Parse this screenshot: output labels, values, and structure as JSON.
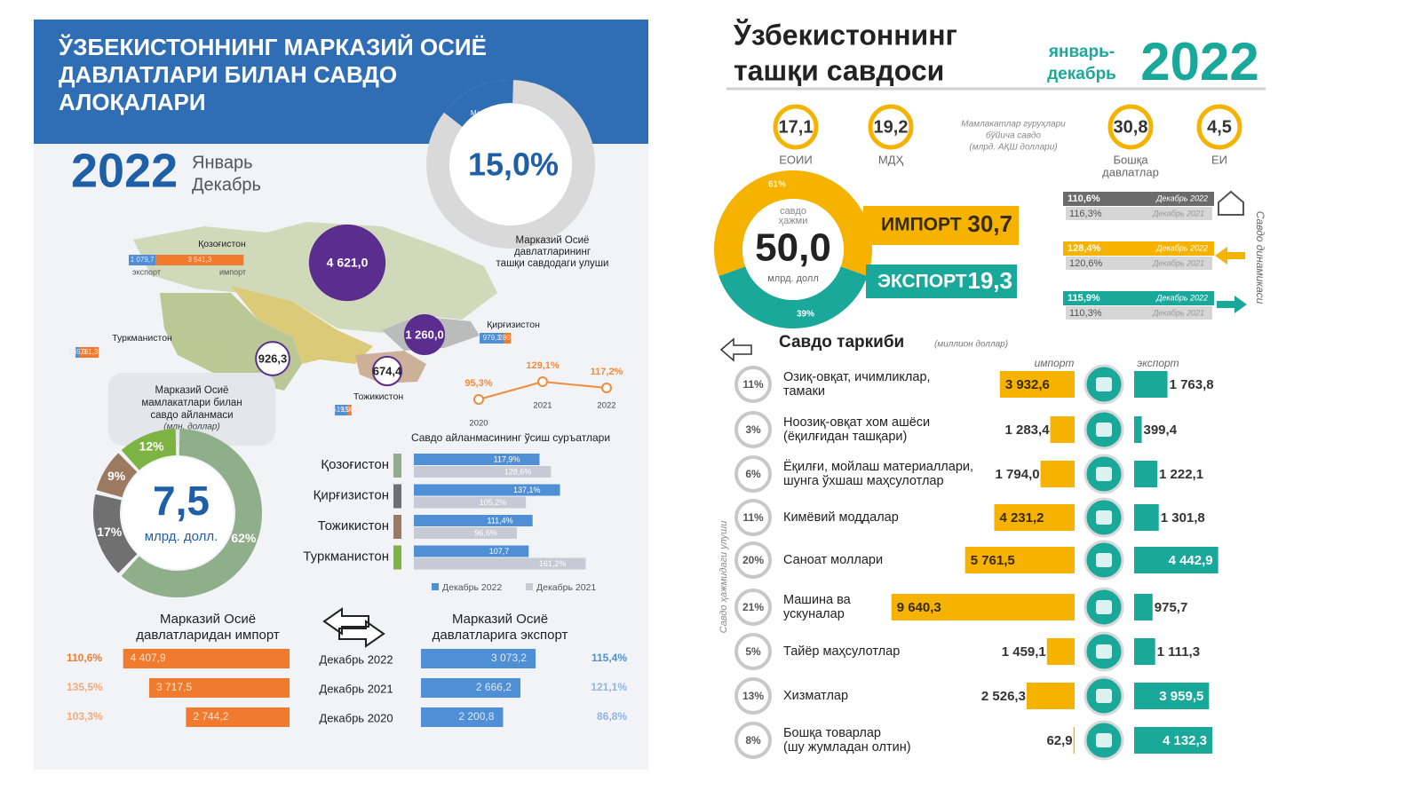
{
  "left": {
    "title": [
      "ЎЗБЕКИСТОННИНГ МАРКАЗИЙ ОСИЁ",
      "ДАВЛАТЛАРИ БИЛАН САВДО",
      "АЛОҚАЛАРИ"
    ],
    "year": "2022",
    "period": [
      "Январь",
      "Декабрь"
    ],
    "share": {
      "name": [
        "Марказий",
        "Осиё"
      ],
      "value": 15.0,
      "value_label": "15,0%",
      "caption": [
        "Марказий Осиё",
        "давлатларининг",
        "ташқи савдодаги улуши"
      ]
    },
    "flow_legend": [
      "экспорт",
      "импорт"
    ],
    "countries": [
      {
        "name": "Қозоғистон",
        "turnover": 4621.0,
        "turnover_label": "4 621,0",
        "export": 1079.7,
        "export_label": "1 079,7",
        "import": 3541.3,
        "import_label": "3 541,3"
      },
      {
        "name": "Қирғизистон",
        "turnover": 1260.0,
        "turnover_label": "1 260,0",
        "export": 979.3,
        "export_label": "979,3",
        "import": 280.7,
        "import_label": "280,7"
      },
      {
        "name": "Туркманистон",
        "turnover": 926.3,
        "turnover_label": "926,3",
        "export": 165.0,
        "export_label": "165,0",
        "import": 761.3,
        "import_label": "761,3"
      },
      {
        "name": "Тожикистон",
        "turnover": 674.4,
        "turnover_label": "674,4",
        "export": 519.9,
        "export_label": "519,9",
        "import": 154.5,
        "import_label": "154,5"
      }
    ],
    "turnover_caption": [
      "Марказий Осиё",
      "мамлакатлари билан",
      "савдо айланмаси"
    ],
    "turnover_unit": "(млн. доллар)",
    "donut": {
      "total": "7,5",
      "unit": "млрд. долл.",
      "values": [
        62,
        17,
        9,
        12
      ],
      "value_labels": [
        "62%",
        "17%",
        "9%",
        "12%"
      ],
      "colors": [
        "#8fae8a",
        "#707070",
        "#9c7a62",
        "#7cb342"
      ]
    },
    "growth": {
      "years": [
        "2020",
        "2021",
        "2022"
      ],
      "values": [
        95.3,
        129.1,
        117.2
      ],
      "value_labels": [
        "95,3%",
        "129,1%",
        "117,2%"
      ],
      "color": "#f08c3a"
    },
    "rates": {
      "title": "Савдо айланмасининг ўсиш суръатлари",
      "countries": [
        "Қозоғистон",
        "Қирғизистон",
        "Тожикистон",
        "Туркманистон"
      ],
      "colors": [
        "#8fae8a",
        "#707070",
        "#9c7a62",
        "#7cb342"
      ],
      "series": [
        {
          "name": "Декабрь 2022",
          "color": "#4f8fd6",
          "values": [
            117.9,
            137.1,
            111.4,
            107.7
          ],
          "value_labels": [
            "117,9%",
            "137,1%",
            "111,4%",
            "107,7"
          ]
        },
        {
          "name": "Декабрь 2021",
          "color": "#c5cad4",
          "values": [
            128.6,
            105.2,
            96.6,
            161.2
          ],
          "value_labels": [
            "128,6%",
            "105,2%",
            "96,6%",
            "161,2%"
          ]
        }
      ]
    },
    "trade": {
      "import_title": [
        "Марказий Осиё",
        "давлатларидан импорт"
      ],
      "export_title": [
        "Марказий Осиё",
        "давлатларига экспорт"
      ],
      "periods": [
        "Декабрь 2022",
        "Декабрь 2021",
        "Декабрь 2020"
      ],
      "import": [
        4407.9,
        3717.5,
        2744.2
      ],
      "import_labels": [
        "4 407,9",
        "3 717,5",
        "2 744,2"
      ],
      "import_growth": [
        "110,6%",
        "135,5%",
        "103,3%"
      ],
      "import_color": "#f07b2e",
      "export": [
        3073.2,
        2666.2,
        2200.8
      ],
      "export_labels": [
        "3 073,2",
        "2 666,2",
        "2 200,8"
      ],
      "export_growth": [
        "115,4%",
        "121,1%",
        "86,8%"
      ],
      "export_color": "#4f8fd6"
    }
  },
  "right": {
    "title": [
      "Ўзбекистоннинг",
      "ташқи савдоси"
    ],
    "period": [
      "январь-",
      "декабрь"
    ],
    "year": "2022",
    "groups": [
      {
        "value": "17,1",
        "name": [
          "ЕОИИ"
        ]
      },
      {
        "value": "19,2",
        "name": [
          "МДҲ"
        ]
      },
      {
        "value": "30,8",
        "name": [
          "Бошқа",
          "давлатлар"
        ]
      },
      {
        "value": "4,5",
        "name": [
          "ЕИ"
        ]
      }
    ],
    "groups_note": [
      "Мамлакатлар гуруҳлари",
      "бўйича савдо",
      "(млрд. АҚШ доллари)"
    ],
    "volume": {
      "caption": [
        "савдо",
        "ҳажми"
      ],
      "total": "50,0",
      "unit": "млрд. долл",
      "values": [
        61,
        39
      ],
      "value_labels": [
        "61%",
        "39%"
      ],
      "colors": [
        "#f5b300",
        "#1aa89a"
      ]
    },
    "import": {
      "name": "ИМПОРТ",
      "value": "30,7"
    },
    "export": {
      "name": "ЭКСПОРТ",
      "value": "19,3"
    },
    "dynamics": {
      "title": "Савдо динамикаси",
      "colors": [
        "#6b6b6b",
        "#f5b300",
        "#1aa89a"
      ],
      "rows": [
        {
          "current": "110,6%",
          "current_period": "Декабрь 2022",
          "previous": "116,3%",
          "previous_period": "Декабрь 2021"
        },
        {
          "current": "128,4%",
          "current_period": "Декабрь 2022",
          "previous": "120,6%",
          "previous_period": "Декабрь 2021"
        },
        {
          "current": "115,9%",
          "current_period": "Декабрь 2022",
          "previous": "110,3%",
          "previous_period": "Декабрь 2021"
        }
      ]
    },
    "structure": {
      "title": "Савдо таркиби",
      "unit": "(миллион доллар)",
      "share_title": "Савдо ҳажмидаги улуши",
      "columns": [
        "импорт",
        "экспорт"
      ],
      "import_color": "#f5b300",
      "export_color": "#1aa89a",
      "rows": [
        {
          "share": "11%",
          "name": [
            "Озиқ-овқат, ичимликлар,",
            "тамаки"
          ],
          "import": 3932.6,
          "import_label": "3 932,6",
          "export": 1763.8,
          "export_label": "1 763,8"
        },
        {
          "share": "3%",
          "name": [
            "Ноозиқ-овқат хом ашёси",
            "(ёқилғидан ташқари)"
          ],
          "import": 1283.4,
          "import_label": "1 283,4",
          "export": 399.4,
          "export_label": "399,4"
        },
        {
          "share": "6%",
          "name": [
            "Ёқилғи, мойлаш материаллари,",
            "шунга ўхшаш маҳсулотлар"
          ],
          "import": 1794.0,
          "import_label": "1 794,0",
          "export": 1222.1,
          "export_label": "1 222,1"
        },
        {
          "share": "11%",
          "name": [
            "Кимёвий моддалар"
          ],
          "import": 4231.2,
          "import_label": "4 231,2",
          "export": 1301.8,
          "export_label": "1 301,8"
        },
        {
          "share": "20%",
          "name": [
            "Саноат моллари"
          ],
          "import": 5761.5,
          "import_label": "5 761,5",
          "export": 4442.9,
          "export_label": "4 442,9"
        },
        {
          "share": "21%",
          "name": [
            "Машина ва",
            "ускуналар"
          ],
          "import": 9640.3,
          "import_label": "9 640,3",
          "export": 975.7,
          "export_label": "975,7"
        },
        {
          "share": "5%",
          "name": [
            "Тайёр маҳсулотлар"
          ],
          "import": 1459.1,
          "import_label": "1 459,1",
          "export": 1111.3,
          "export_label": "1 111,3"
        },
        {
          "share": "13%",
          "name": [
            "Хизматлар"
          ],
          "import": 2526.3,
          "import_label": "2 526,3",
          "export": 3959.5,
          "export_label": "3 959,5"
        },
        {
          "share": "8%",
          "name": [
            "Бошқа товарлар",
            "(шу жумладан олтин)"
          ],
          "import": 62.9,
          "import_label": "62,9",
          "export": 4132.3,
          "export_label": "4 132,3"
        }
      ]
    }
  }
}
